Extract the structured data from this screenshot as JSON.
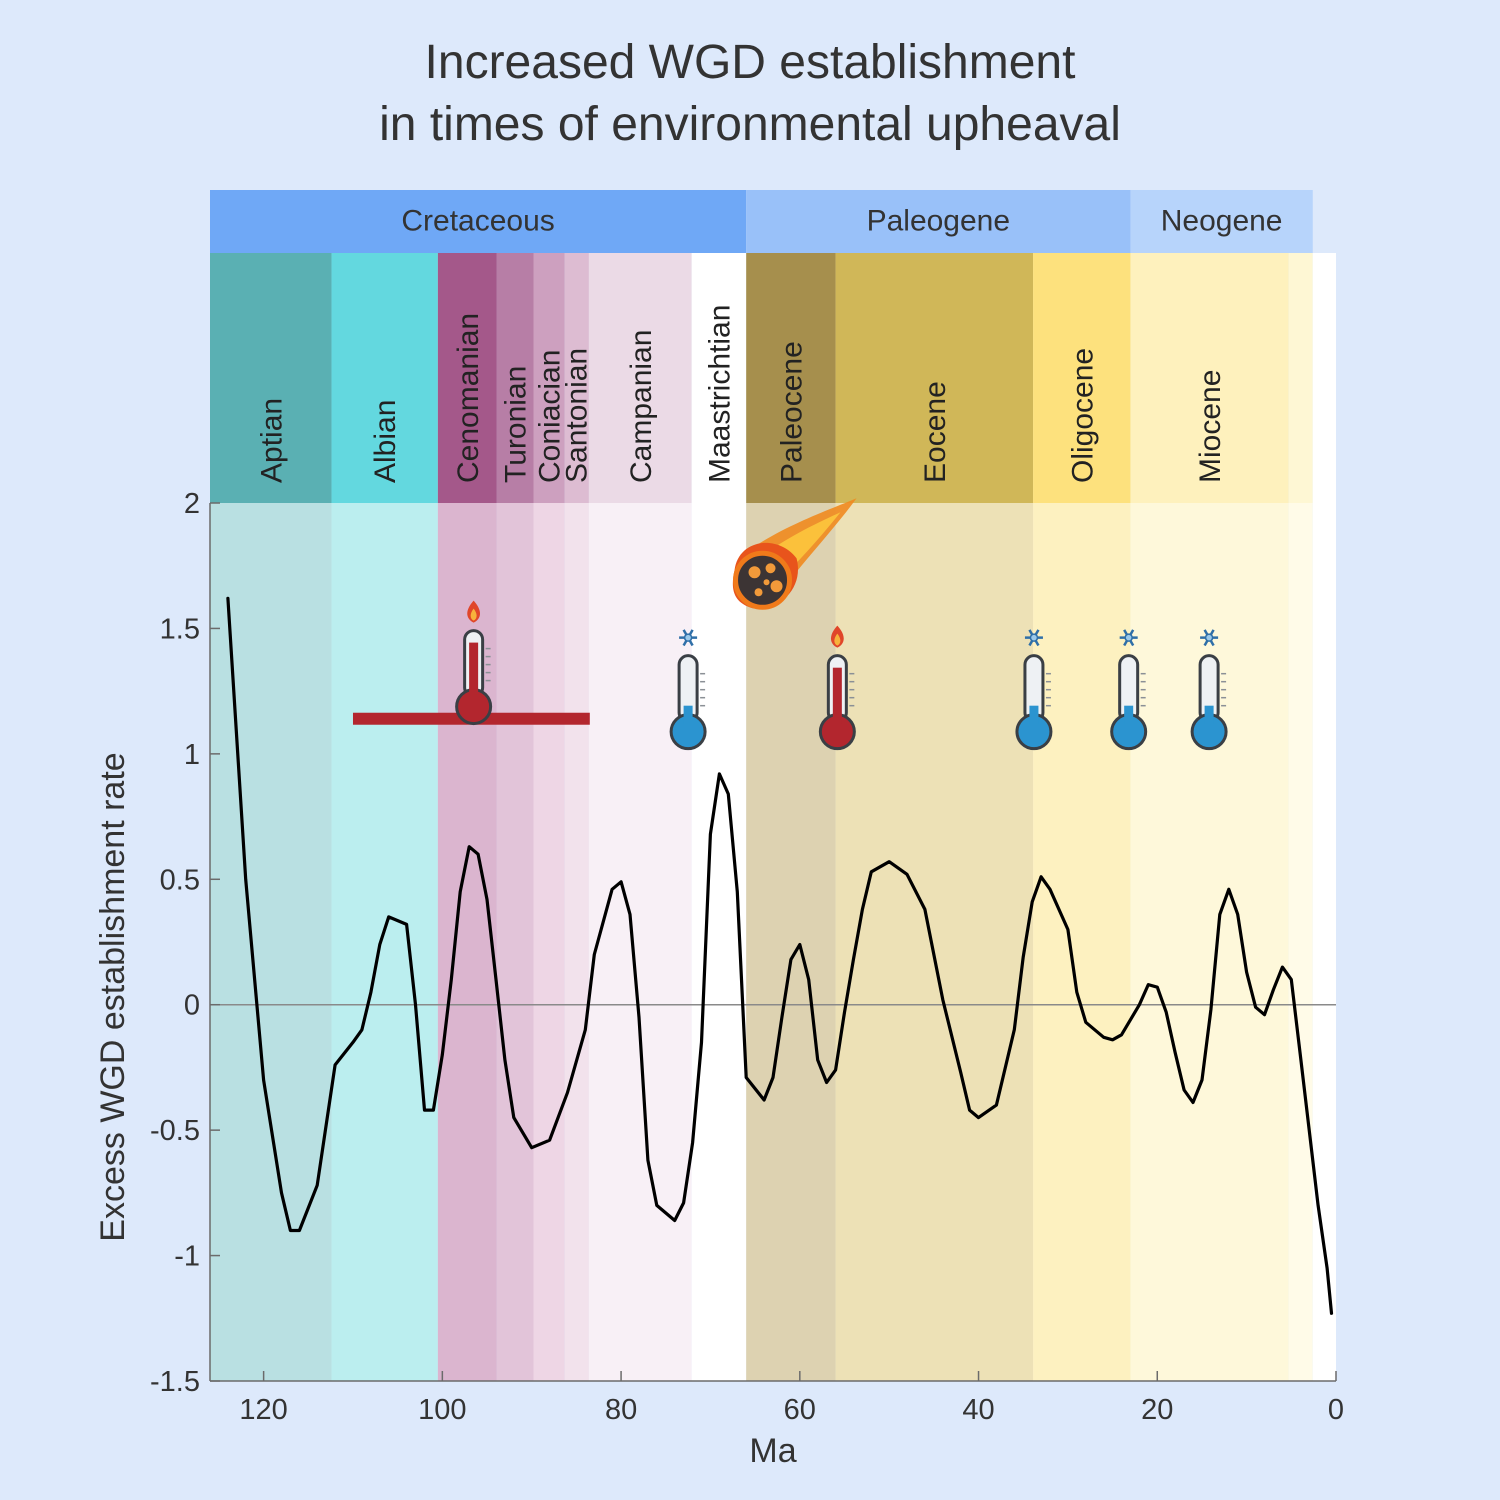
{
  "chart_data": {
    "type": "line",
    "title": [
      "Increased WGD establishment",
      "in times of environmental upheaval"
    ],
    "xlabel": "Ma",
    "ylabel": "Excess WGD establishment rate",
    "xlim": [
      126,
      0
    ],
    "ylim": [
      -1.5,
      2
    ],
    "x_ticks": [
      120,
      100,
      80,
      60,
      40,
      20,
      0
    ],
    "y_ticks": [
      2,
      1.5,
      1,
      0.5,
      0,
      -0.5,
      -1,
      -1.5
    ],
    "x_tick_labels": [
      "120",
      "100",
      "80",
      "60",
      "40",
      "20",
      "0"
    ],
    "y_tick_labels": [
      "2",
      "1.5",
      "1",
      "0.5",
      "0",
      "-0.5",
      "-1",
      "-1.5"
    ],
    "periods": [
      {
        "name": "Cretaceous",
        "start": 126,
        "end": 66,
        "color": "#6fa8f6"
      },
      {
        "name": "Paleogene",
        "start": 66,
        "end": 23,
        "color": "#99c1f9"
      },
      {
        "name": "Neogene",
        "start": 23,
        "end": 2.6,
        "color": "#b7d4fb"
      }
    ],
    "stages": [
      {
        "name": "Aptian",
        "start": 126,
        "end": 112.4,
        "band_color": "#5ab0b3",
        "fill_color": "#b9e0e2"
      },
      {
        "name": "Albian",
        "start": 112.4,
        "end": 100.5,
        "band_color": "#63d8df",
        "fill_color": "#bbeeef"
      },
      {
        "name": "Cenomanian",
        "start": 100.5,
        "end": 93.9,
        "band_color": "#a4588a",
        "fill_color": "#dbb5cf"
      },
      {
        "name": "Turonian",
        "start": 93.9,
        "end": 89.8,
        "band_color": "#b77ea6",
        "fill_color": "#e2c4d9"
      },
      {
        "name": "Coniacian",
        "start": 89.8,
        "end": 86.3,
        "band_color": "#cda0bf",
        "fill_color": "#eed6e5"
      },
      {
        "name": "Santonian",
        "start": 86.3,
        "end": 83.6,
        "band_color": "#ddbcd2",
        "fill_color": "#f2e2ec"
      },
      {
        "name": "Campanian",
        "start": 83.6,
        "end": 72.1,
        "band_color": "#ebdae6",
        "fill_color": "#f8f0f6"
      },
      {
        "name": "Maastrichtian",
        "start": 72.1,
        "end": 66,
        "band_color": "#ffffff",
        "fill_color": "#ffffff"
      },
      {
        "name": "Paleocene",
        "start": 66,
        "end": 56,
        "band_color": "#a68f4d",
        "fill_color": "#ddd2b1"
      },
      {
        "name": "Eocene",
        "start": 56,
        "end": 33.9,
        "band_color": "#d0b758",
        "fill_color": "#ede1b6"
      },
      {
        "name": "Oligocene",
        "start": 33.9,
        "end": 23,
        "band_color": "#fde17d",
        "fill_color": "#fdf1c0"
      },
      {
        "name": "Miocene",
        "start": 23,
        "end": 5.3,
        "band_color": "#fef1bd",
        "fill_color": "#fef8da"
      },
      {
        "name": "",
        "start": 5.3,
        "end": 2.6,
        "band_color": "#fef7d4",
        "fill_color": "#fffbe8"
      },
      {
        "name": "",
        "start": 2.6,
        "end": 0,
        "band_color": "#ffffff",
        "fill_color": "#ffffff"
      }
    ],
    "series": [
      {
        "x": [
          124,
          122,
          120,
          118,
          117,
          116,
          114,
          112,
          110,
          109,
          108,
          107,
          106,
          104,
          103,
          102,
          101,
          100,
          99,
          98,
          97,
          96,
          95,
          94,
          93,
          92,
          90,
          88,
          86,
          84,
          83,
          81,
          80,
          79,
          78,
          77,
          76,
          74,
          73,
          72,
          71,
          70,
          69,
          68,
          67,
          66,
          64,
          63,
          62,
          61,
          60,
          59,
          58,
          57,
          56,
          55,
          54,
          53,
          52,
          50,
          48,
          46,
          44,
          42,
          41,
          40,
          38,
          36,
          35,
          34,
          33,
          32,
          30,
          29,
          28,
          26,
          25,
          24,
          22,
          21,
          20,
          19,
          18,
          17,
          16,
          15,
          14,
          13,
          12,
          11,
          10,
          9,
          8,
          7,
          6,
          5,
          4,
          3,
          2,
          1,
          0.5
        ],
        "y": [
          1.62,
          0.5,
          -0.3,
          -0.75,
          -0.9,
          -0.9,
          -0.72,
          -0.24,
          -0.15,
          -0.1,
          0.05,
          0.24,
          0.35,
          0.32,
          0.0,
          -0.42,
          -0.42,
          -0.2,
          0.1,
          0.45,
          0.63,
          0.6,
          0.42,
          0.1,
          -0.22,
          -0.45,
          -0.57,
          -0.54,
          -0.35,
          -0.1,
          0.2,
          0.46,
          0.49,
          0.36,
          -0.05,
          -0.62,
          -0.8,
          -0.86,
          -0.79,
          -0.55,
          -0.15,
          0.68,
          0.92,
          0.84,
          0.45,
          -0.29,
          -0.38,
          -0.29,
          -0.05,
          0.18,
          0.24,
          0.1,
          -0.22,
          -0.31,
          -0.26,
          -0.03,
          0.18,
          0.38,
          0.53,
          0.57,
          0.52,
          0.38,
          0.02,
          -0.27,
          -0.42,
          -0.45,
          -0.4,
          -0.1,
          0.19,
          0.41,
          0.51,
          0.46,
          0.3,
          0.05,
          -0.07,
          -0.13,
          -0.14,
          -0.12,
          0.0,
          0.08,
          0.07,
          -0.03,
          -0.19,
          -0.34,
          -0.39,
          -0.3,
          -0.02,
          0.36,
          0.46,
          0.36,
          0.13,
          -0.01,
          -0.04,
          0.06,
          0.15,
          0.1,
          -0.2,
          -0.5,
          -0.8,
          -1.05,
          -1.23
        ]
      }
    ],
    "zero_line": 0,
    "highlight_bar": {
      "x_start": 110,
      "x_end": 83.5,
      "y": 1.14,
      "color": "#b3262e"
    },
    "events": [
      {
        "type": "thermometer-hot",
        "x": 96.5,
        "y": 1.3
      },
      {
        "type": "thermometer-cold",
        "x": 72.5,
        "y": 1.2
      },
      {
        "type": "meteor",
        "x": 63.5,
        "y": 1.7
      },
      {
        "type": "thermometer-hot",
        "x": 55.8,
        "y": 1.2
      },
      {
        "type": "thermometer-cold",
        "x": 33.8,
        "y": 1.2
      },
      {
        "type": "thermometer-cold",
        "x": 23.2,
        "y": 1.2
      },
      {
        "type": "thermometer-cold",
        "x": 14.2,
        "y": 1.2
      }
    ],
    "colors": {
      "line": "#000000",
      "hot": "#b3262e",
      "cold": "#2b94d0",
      "background": "#dde9fb"
    }
  }
}
